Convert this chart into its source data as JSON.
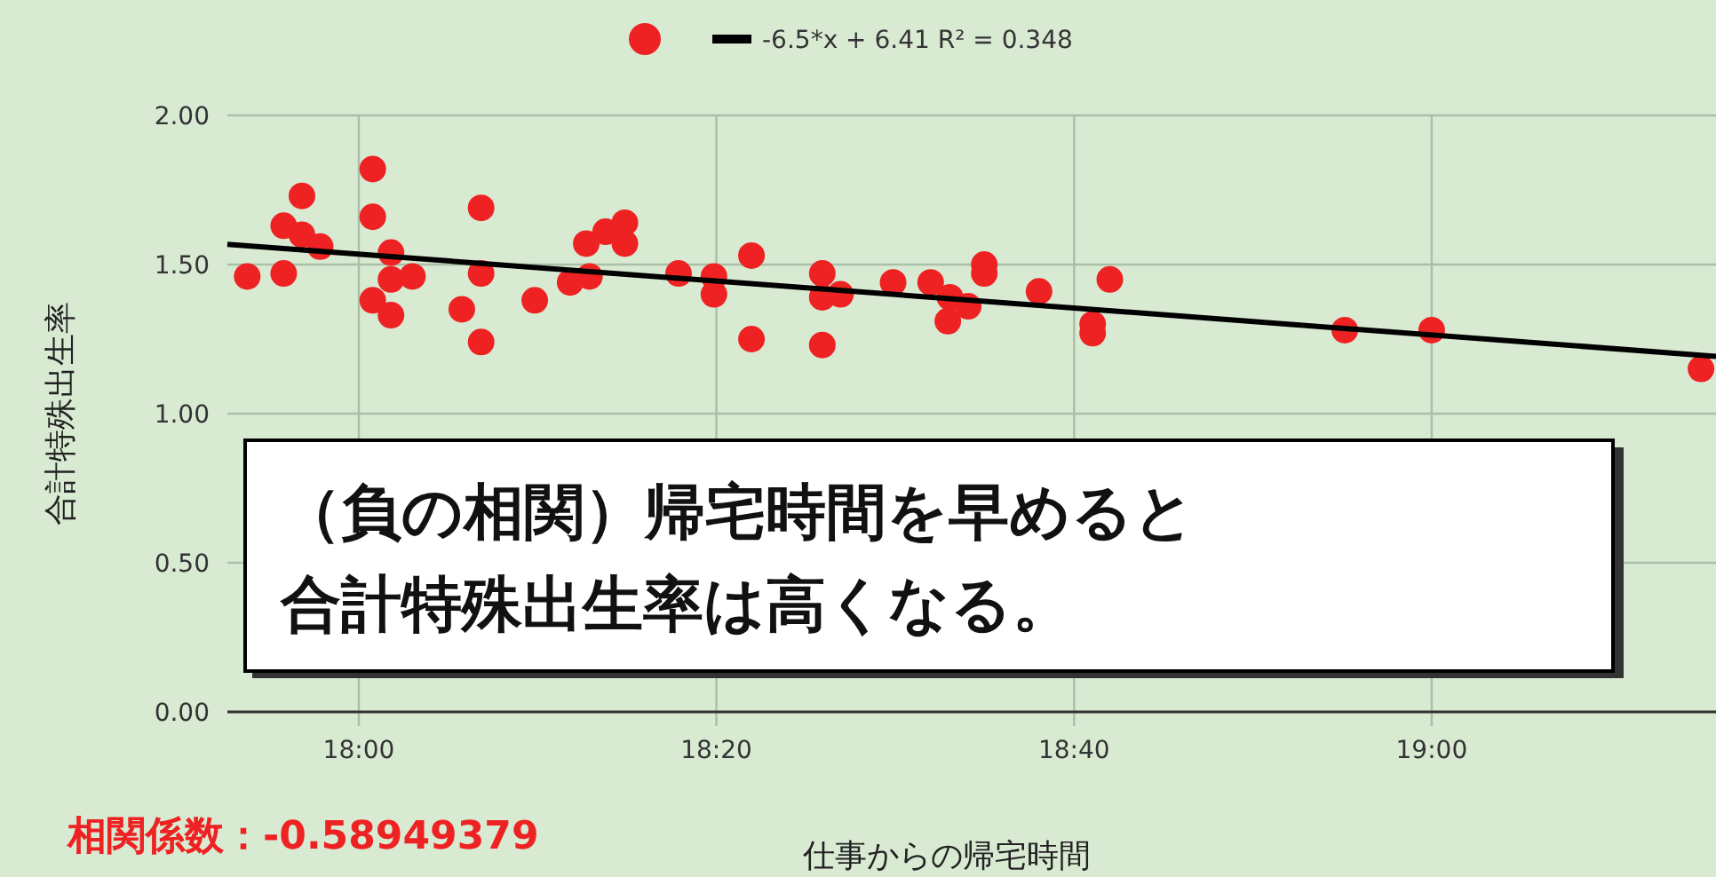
{
  "chart_data": {
    "type": "scatter",
    "xlabel": "仕事からの帰宅時間",
    "ylabel": "合計特殊出生率",
    "annotations": [
      "相関係数：-0.58949379",
      "（負の相関）帰宅時間を早めると合計特殊出生率は高くなる。"
    ],
    "xlim": [
      17.8775,
      19.265
    ],
    "ylim": [
      0,
      2
    ],
    "xticks": [
      {
        "value": 18,
        "label": "18:00"
      },
      {
        "value": 18.3333,
        "label": "18:20"
      },
      {
        "value": 18.6667,
        "label": "18:40"
      },
      {
        "value": 19,
        "label": "19:00"
      }
    ],
    "yticks": [
      {
        "value": 0,
        "label": "0.00"
      },
      {
        "value": 0.5,
        "label": "0.50"
      },
      {
        "value": 1,
        "label": "1.00"
      },
      {
        "value": 1.5,
        "label": "1.50"
      },
      {
        "value": 2,
        "label": "2.00"
      }
    ],
    "grid": true,
    "legend": "top",
    "series": [
      {
        "type": "scatter",
        "color": "#ee2222",
        "x": [
          17.896,
          17.93,
          17.93,
          17.947,
          17.947,
          17.964,
          18.013,
          18.013,
          18.013,
          18.03,
          18.03,
          18.05,
          18.03,
          18.096,
          18.114,
          18.114,
          18.114,
          18.164,
          18.197,
          18.215,
          18.212,
          18.23,
          18.248,
          18.248,
          18.298,
          18.331,
          18.331,
          18.366,
          18.366,
          18.432,
          18.432,
          18.449,
          18.432,
          18.498,
          18.533,
          18.551,
          18.568,
          18.549,
          18.583,
          18.583,
          18.634,
          18.684,
          18.684,
          18.7,
          18.919,
          19.0,
          19.251
        ],
        "values": [
          1.46,
          1.47,
          1.63,
          1.73,
          1.6,
          1.56,
          1.82,
          1.66,
          1.38,
          1.54,
          1.45,
          1.46,
          1.33,
          1.35,
          1.69,
          1.47,
          1.24,
          1.38,
          1.44,
          1.46,
          1.57,
          1.61,
          1.64,
          1.57,
          1.47,
          1.46,
          1.4,
          1.53,
          1.25,
          1.47,
          1.39,
          1.4,
          1.23,
          1.44,
          1.44,
          1.39,
          1.36,
          1.31,
          1.5,
          1.47,
          1.41,
          1.3,
          1.27,
          1.45,
          1.28,
          1.28,
          1.15
        ]
      },
      {
        "type": "line",
        "name": "-6.5*x + 6.41 R² = 0.348",
        "color": "#000000",
        "x": [
          17.8775,
          19.265
        ],
        "values": [
          1.568,
          1.192
        ]
      }
    ]
  }
}
